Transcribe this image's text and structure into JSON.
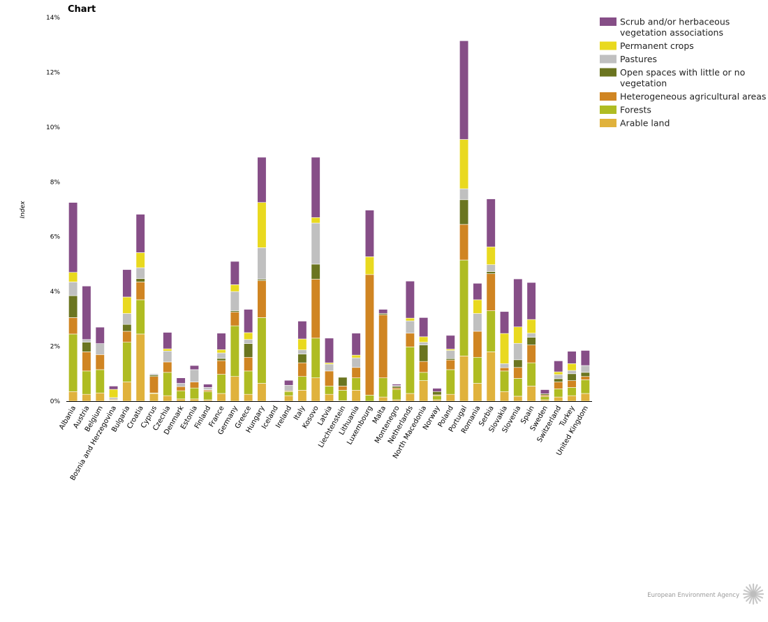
{
  "chart_data": {
    "type": "bar",
    "stacked": true,
    "title": "Chart",
    "xlabel": "",
    "ylabel": "Index",
    "ylim": [
      0,
      14
    ],
    "yticks": [
      0,
      2,
      4,
      6,
      8,
      10,
      12,
      14
    ],
    "ytick_labels": [
      "0%",
      "2%",
      "4%",
      "6%",
      "8%",
      "10%",
      "12%",
      "14%"
    ],
    "categories": [
      "Albania",
      "Austria",
      "Belgium",
      "Bosnia and Herzegovina",
      "Bulgaria",
      "Croatia",
      "Cyprus",
      "Czechia",
      "Denmark",
      "Estonia",
      "Finland",
      "France",
      "Germany",
      "Greece",
      "Hungary",
      "Iceland",
      "Ireland",
      "Italy",
      "Kosovo",
      "Latvia",
      "Liechtenstein",
      "Lithuania",
      "Luxembourg",
      "Malta",
      "Montenegro",
      "Netherlands",
      "North Macedonia",
      "Norway",
      "Poland",
      "Portugal",
      "Romania",
      "Serbia",
      "Slovakia",
      "Slovenia",
      "Spain",
      "Sweden",
      "Switzerland",
      "Turkey",
      "United Kingdom"
    ],
    "series": [
      {
        "name": "Arable land",
        "color": "#e0b23c",
        "values": [
          0.35,
          0.25,
          0.3,
          0.02,
          0.7,
          2.45,
          0.28,
          0.2,
          0.08,
          0.08,
          0.05,
          0.28,
          0.9,
          0.25,
          0.65,
          0.0,
          0.2,
          0.4,
          0.85,
          0.25,
          0.02,
          0.4,
          0.0,
          0.15,
          0.05,
          0.28,
          0.75,
          0.05,
          0.25,
          1.65,
          0.65,
          1.8,
          0.35,
          0.18,
          0.55,
          0.05,
          0.15,
          0.2,
          0.28
        ]
      },
      {
        "name": "Forests",
        "color": "#afbc22",
        "values": [
          2.1,
          0.85,
          0.85,
          0.02,
          1.45,
          1.25,
          0.02,
          0.85,
          0.3,
          0.4,
          0.3,
          0.7,
          1.85,
          0.85,
          2.4,
          0.0,
          0.15,
          0.5,
          1.45,
          0.3,
          0.38,
          0.45,
          0.22,
          0.7,
          0.38,
          1.7,
          0.3,
          0.15,
          0.9,
          3.5,
          0.95,
          1.5,
          0.75,
          0.65,
          0.85,
          0.12,
          0.3,
          0.3,
          0.5
        ]
      },
      {
        "name": "Heterogeneous agricultural areas",
        "color": "#d08522",
        "values": [
          0.6,
          0.7,
          0.55,
          0.03,
          0.4,
          0.65,
          0.6,
          0.38,
          0.15,
          0.22,
          0.05,
          0.5,
          0.5,
          0.5,
          1.35,
          0.0,
          0.03,
          0.5,
          2.15,
          0.55,
          0.15,
          0.38,
          4.4,
          2.3,
          0.05,
          0.5,
          0.4,
          0.03,
          0.35,
          1.3,
          0.95,
          1.35,
          0.12,
          0.4,
          0.65,
          0.05,
          0.25,
          0.25,
          0.12
        ]
      },
      {
        "name": "Open spaces with little or no vegetation",
        "color": "#6b7520",
        "values": [
          0.8,
          0.35,
          0.0,
          0.0,
          0.25,
          0.12,
          0.05,
          0.0,
          0.0,
          0.0,
          0.02,
          0.08,
          0.05,
          0.5,
          0.05,
          0.0,
          0.0,
          0.32,
          0.55,
          0.0,
          0.32,
          0.0,
          0.0,
          0.05,
          0.06,
          0.0,
          0.6,
          0.12,
          0.05,
          0.9,
          0.0,
          0.08,
          0.0,
          0.28,
          0.28,
          0.05,
          0.12,
          0.25,
          0.15
        ]
      },
      {
        "name": "Pastures",
        "color": "#c0c0c0",
        "values": [
          0.5,
          0.1,
          0.4,
          0.06,
          0.4,
          0.4,
          0.05,
          0.4,
          0.12,
          0.45,
          0.08,
          0.2,
          0.7,
          0.15,
          1.15,
          0.0,
          0.2,
          0.15,
          1.5,
          0.25,
          0.0,
          0.35,
          0.0,
          0.0,
          0.03,
          0.45,
          0.1,
          0.0,
          0.3,
          0.4,
          0.65,
          0.25,
          0.15,
          0.6,
          0.15,
          0.0,
          0.15,
          0.12,
          0.25
        ]
      },
      {
        "name": "Permanent crops",
        "color": "#e9d91f",
        "values": [
          0.35,
          0.0,
          0.0,
          0.3,
          0.6,
          0.55,
          0.0,
          0.08,
          0.0,
          0.0,
          0.0,
          0.12,
          0.25,
          0.25,
          1.65,
          0.0,
          0.0,
          0.4,
          0.2,
          0.05,
          0.0,
          0.1,
          0.65,
          0.0,
          0.0,
          0.1,
          0.2,
          0.0,
          0.05,
          1.8,
          0.5,
          0.65,
          1.1,
          0.6,
          0.5,
          0.0,
          0.1,
          0.25,
          0.0
        ]
      },
      {
        "name": "Scrub and/or herbaceous vegetation associations",
        "color": "#864e87",
        "values": [
          2.55,
          1.95,
          0.6,
          0.12,
          1.0,
          1.4,
          0.0,
          0.6,
          0.2,
          0.15,
          0.12,
          0.6,
          0.85,
          0.85,
          1.65,
          0.02,
          0.18,
          0.65,
          2.2,
          0.9,
          0.0,
          0.8,
          1.7,
          0.15,
          0.05,
          1.35,
          0.7,
          0.12,
          0.5,
          3.6,
          0.6,
          1.75,
          0.8,
          1.75,
          1.35,
          0.15,
          0.4,
          0.45,
          0.55
        ]
      }
    ],
    "legend": {
      "position": "top-right",
      "order": [
        "Scrub and/or herbaceous vegetation associations",
        "Permanent crops",
        "Pastures",
        "Open spaces with little or no vegetation",
        "Heterogeneous agricultural areas",
        "Forests",
        "Arable land"
      ],
      "lines": [
        [
          "Scrub and/or herbaceous",
          "vegetation associations"
        ],
        [
          "Permanent crops"
        ],
        [
          "Pastures"
        ],
        [
          "Open spaces with little or no",
          "vegetation"
        ],
        [
          "Heterogeneous agricultural areas"
        ],
        [
          "Forests"
        ],
        [
          "Arable land"
        ]
      ]
    },
    "grid": false
  },
  "footer": {
    "source_label": "European Environment Agency"
  }
}
